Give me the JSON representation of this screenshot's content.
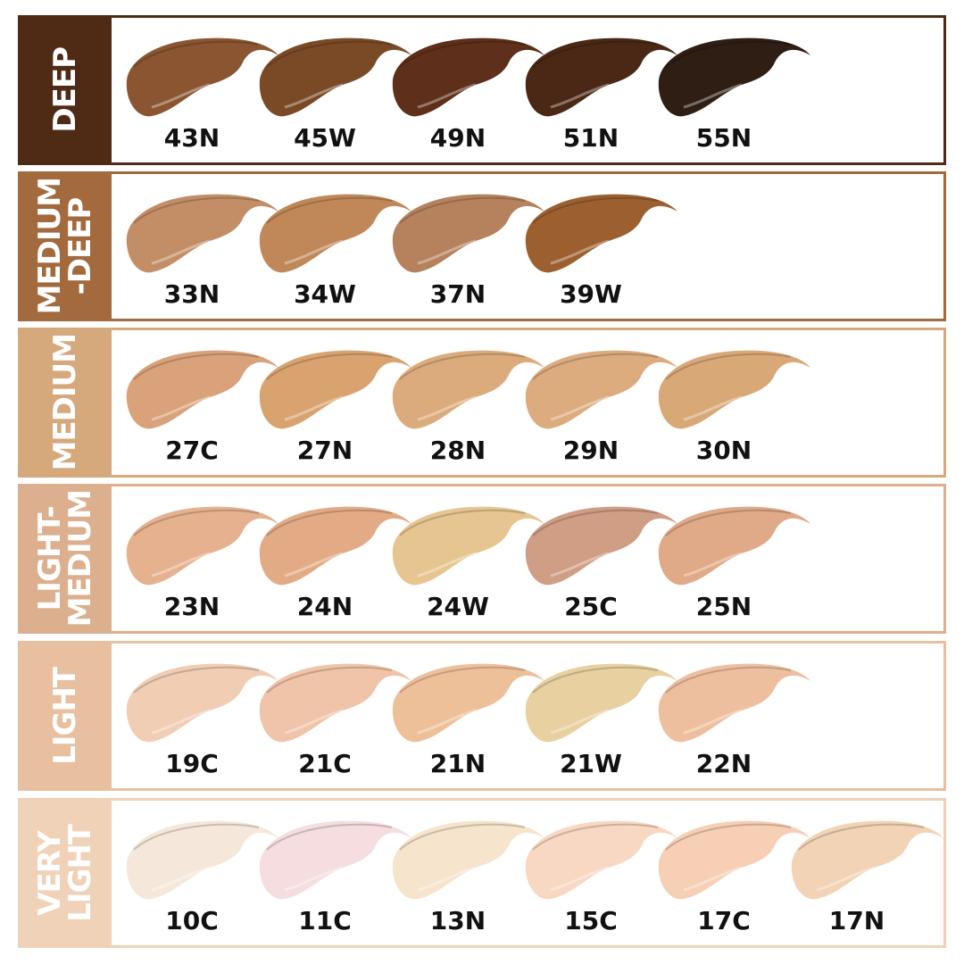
{
  "groups": [
    {
      "label": "DEEP",
      "color": "#4f2a15",
      "shades": [
        {
          "code": "43N",
          "color": "#8a5530"
        },
        {
          "code": "45W",
          "color": "#7a4a26"
        },
        {
          "code": "49N",
          "color": "#5e2f1a"
        },
        {
          "code": "51N",
          "color": "#4a2815"
        },
        {
          "code": "55N",
          "color": "#2e1e14"
        }
      ]
    },
    {
      "label": "MEDIUM\n-DEEP",
      "color": "#a36a3d",
      "shades": [
        {
          "code": "33N",
          "color": "#c38e66"
        },
        {
          "code": "34W",
          "color": "#c08858"
        },
        {
          "code": "37N",
          "color": "#b5825d"
        },
        {
          "code": "39W",
          "color": "#9c6030"
        }
      ]
    },
    {
      "label": "MEDIUM",
      "color": "#d6a97c",
      "shades": [
        {
          "code": "27C",
          "color": "#d9a27a"
        },
        {
          "code": "27N",
          "color": "#d9a370"
        },
        {
          "code": "28N",
          "color": "#dcab7c"
        },
        {
          "code": "29N",
          "color": "#dcab7e"
        },
        {
          "code": "30N",
          "color": "#d9a877"
        }
      ]
    },
    {
      "label": "LIGHT-\nMEDIUM",
      "color": "#dcb08f",
      "shades": [
        {
          "code": "23N",
          "color": "#e5b18e"
        },
        {
          "code": "24N",
          "color": "#e2ab85"
        },
        {
          "code": "24W",
          "color": "#e6c590"
        },
        {
          "code": "25C",
          "color": "#d09d85"
        },
        {
          "code": "25N",
          "color": "#e0a987"
        }
      ]
    },
    {
      "label": "LIGHT",
      "color": "#e8c0a0",
      "shades": [
        {
          "code": "19C",
          "color": "#f1cdb4"
        },
        {
          "code": "21C",
          "color": "#f0c4a8"
        },
        {
          "code": "21N",
          "color": "#eec09a"
        },
        {
          "code": "21W",
          "color": "#e8d0a0"
        },
        {
          "code": "22N",
          "color": "#eebf9f"
        }
      ]
    },
    {
      "label": "VERY\nLIGHT",
      "color": "#f0d2b8",
      "shades": [
        {
          "code": "10C",
          "color": "#f5e8da"
        },
        {
          "code": "11C",
          "color": "#f5dde0"
        },
        {
          "code": "13N",
          "color": "#f6e4cc"
        },
        {
          "code": "15C",
          "color": "#f8d7c3"
        },
        {
          "code": "17C",
          "color": "#f6cfb5"
        },
        {
          "code": "17N",
          "color": "#f2d3b5"
        }
      ]
    }
  ]
}
